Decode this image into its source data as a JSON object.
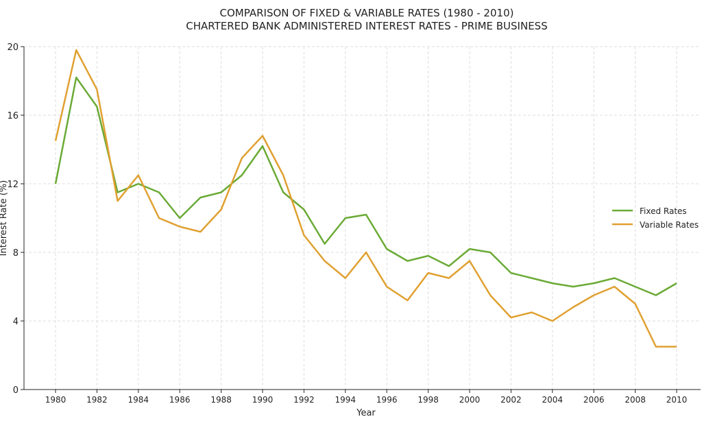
{
  "chart_data": {
    "type": "line",
    "title": "COMPARISON OF FIXED & VARIABLE RATES (1980 - 2010)",
    "subtitle": "CHARTERED BANK ADMINISTERED INTEREST RATES - PRIME BUSINESS",
    "xlabel": "Year",
    "ylabel": "Interest Rate (%)",
    "xlim": [
      1980,
      2010
    ],
    "ylim": [
      0,
      20
    ],
    "xticks": [
      1980,
      1982,
      1984,
      1986,
      1988,
      1990,
      1992,
      1994,
      1996,
      1998,
      2000,
      2002,
      2004,
      2006,
      2008,
      2010
    ],
    "yticks": [
      0,
      4,
      8,
      12,
      16,
      20
    ],
    "grid": true,
    "legend_position": "right",
    "x": [
      1980,
      1981,
      1982,
      1983,
      1984,
      1985,
      1986,
      1987,
      1988,
      1989,
      1990,
      1991,
      1992,
      1993,
      1994,
      1995,
      1996,
      1997,
      1998,
      1999,
      2000,
      2001,
      2002,
      2003,
      2004,
      2005,
      2006,
      2007,
      2008,
      2009,
      2010
    ],
    "series": [
      {
        "name": "Fixed Rates",
        "color": "#6aaa35",
        "values": [
          12,
          18.2,
          16.5,
          11.5,
          12,
          11.5,
          10,
          11.2,
          11.5,
          12.5,
          14.2,
          11.5,
          10.5,
          8.5,
          10,
          10.2,
          8.2,
          7.5,
          7.8,
          7.2,
          8.2,
          8.0,
          6.8,
          6.5,
          6.2,
          6.0,
          6.2,
          6.5,
          6.0,
          5.5,
          6.2
        ]
      },
      {
        "name": "Variable Rates",
        "color": "#e0a030",
        "values": [
          14.5,
          19.8,
          17.5,
          11,
          12.5,
          10,
          9.5,
          9.2,
          10.5,
          13.5,
          14.8,
          12.5,
          9,
          7.5,
          6.5,
          8,
          6,
          5.2,
          6.8,
          6.5,
          7.5,
          5.5,
          4.2,
          4.5,
          4.0,
          4.8,
          5.5,
          6.0,
          5.0,
          2.5,
          2.5
        ]
      }
    ]
  }
}
